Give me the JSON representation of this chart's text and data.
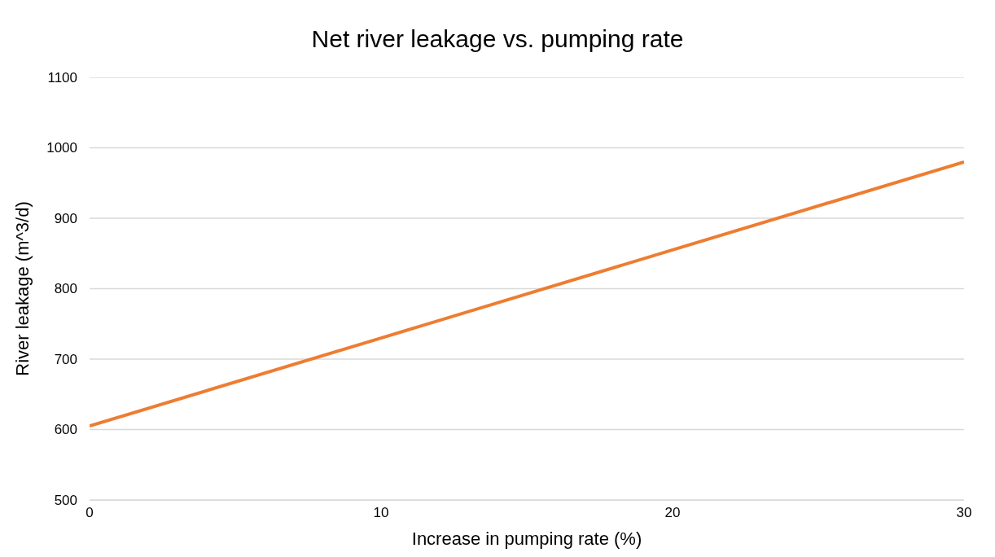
{
  "chart_data": {
    "type": "line",
    "title": "Net river leakage vs. pumping rate",
    "xlabel": "Increase in pumping rate (%)",
    "ylabel": "River leakage (m^3/d)",
    "x": [
      0,
      10,
      20,
      30
    ],
    "series": [
      {
        "color": "#ed7d31",
        "values": [
          605,
          730,
          855,
          980
        ]
      }
    ],
    "xlim": [
      0,
      30
    ],
    "xticks": [
      0,
      10,
      20,
      30
    ],
    "ylim": [
      500,
      1100
    ],
    "yticks": [
      500,
      600,
      700,
      800,
      900,
      1000,
      1100
    ],
    "grid": "y",
    "marker": "none",
    "line_style": "solid"
  }
}
